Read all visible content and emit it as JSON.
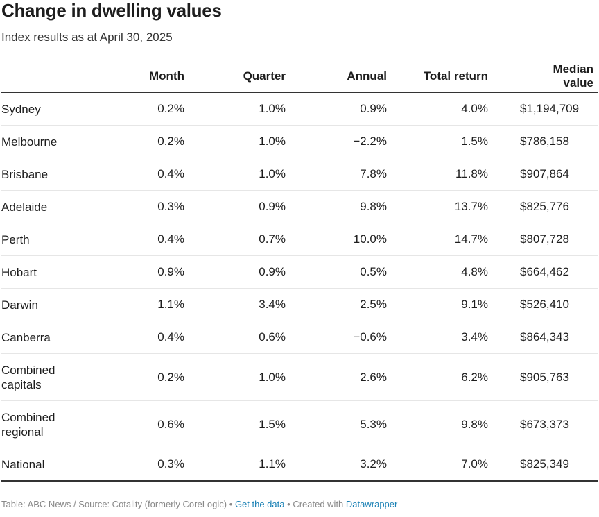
{
  "title": "Change in dwelling values",
  "subtitle": "Index results as at April 30, 2025",
  "chart_data": {
    "type": "table",
    "columns": [
      "",
      "Month",
      "Quarter",
      "Annual",
      "Total return",
      "Median value"
    ],
    "rows": [
      {
        "city": "Sydney",
        "month": "0.2%",
        "quarter": "1.0%",
        "annual": "0.9%",
        "total": "4.0%",
        "median": "$1,194,709"
      },
      {
        "city": "Melbourne",
        "month": "0.2%",
        "quarter": "1.0%",
        "annual": "−2.2%",
        "total": "1.5%",
        "median": "$786,158"
      },
      {
        "city": "Brisbane",
        "month": "0.4%",
        "quarter": "1.0%",
        "annual": "7.8%",
        "total": "11.8%",
        "median": "$907,864"
      },
      {
        "city": "Adelaide",
        "month": "0.3%",
        "quarter": "0.9%",
        "annual": "9.8%",
        "total": "13.7%",
        "median": "$825,776"
      },
      {
        "city": "Perth",
        "month": "0.4%",
        "quarter": "0.7%",
        "annual": "10.0%",
        "total": "14.7%",
        "median": "$807,728"
      },
      {
        "city": "Hobart",
        "month": "0.9%",
        "quarter": "0.9%",
        "annual": "0.5%",
        "total": "4.8%",
        "median": "$664,462"
      },
      {
        "city": "Darwin",
        "month": "1.1%",
        "quarter": "3.4%",
        "annual": "2.5%",
        "total": "9.1%",
        "median": "$526,410"
      },
      {
        "city": "Canberra",
        "month": "0.4%",
        "quarter": "0.6%",
        "annual": "−0.6%",
        "total": "3.4%",
        "median": "$864,343"
      },
      {
        "city": "Combined capitals",
        "month": "0.2%",
        "quarter": "1.0%",
        "annual": "2.6%",
        "total": "6.2%",
        "median": "$905,763"
      },
      {
        "city": "Combined regional",
        "month": "0.6%",
        "quarter": "1.5%",
        "annual": "5.3%",
        "total": "9.8%",
        "median": "$673,373"
      },
      {
        "city": "National",
        "month": "0.3%",
        "quarter": "1.1%",
        "annual": "3.2%",
        "total": "7.0%",
        "median": "$825,349"
      }
    ]
  },
  "footer": {
    "source": "Table: ABC News / Source: Cotality (formerly CoreLogic)",
    "sep": "•",
    "get_data": "Get the data",
    "created_with": "Created with",
    "datawrapper": "Datawrapper"
  }
}
